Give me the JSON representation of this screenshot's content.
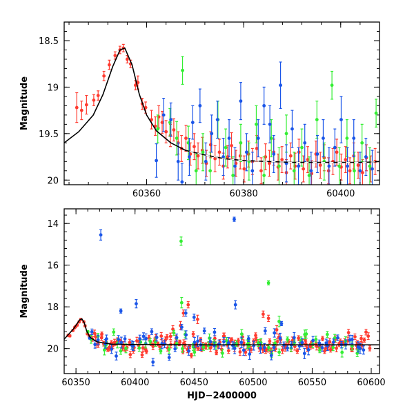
{
  "chart_data": [
    {
      "type": "scatter",
      "panel": "top",
      "xlabel": "",
      "ylabel": "Magnitude",
      "xlim": [
        60343,
        60408
      ],
      "ylim": [
        20.05,
        18.3
      ],
      "y_inverted": true,
      "x_ticks": [
        60360,
        60380,
        60400
      ],
      "x_tick_labels": [
        "60360",
        "60380",
        "60400"
      ],
      "y_ticks": [
        18.5,
        19,
        19.5,
        20
      ],
      "y_tick_labels": [
        "18.5",
        "19",
        "19.5",
        "20"
      ],
      "grid": false,
      "legend": "none",
      "colors": {
        "red": "#ff3b30",
        "green": "#33ee33",
        "blue": "#1a55e8",
        "model": "#000000"
      },
      "model_curve": {
        "label": "",
        "color": "#000000",
        "dashed_beyond_x": 60368,
        "points": [
          [
            60343,
            19.6
          ],
          [
            60346,
            19.48
          ],
          [
            60349,
            19.3
          ],
          [
            60351,
            19.08
          ],
          [
            60353,
            18.78
          ],
          [
            60354.5,
            18.6
          ],
          [
            60355.5,
            18.58
          ],
          [
            60357,
            18.76
          ],
          [
            60358.5,
            19.08
          ],
          [
            60360,
            19.3
          ],
          [
            60362,
            19.47
          ],
          [
            60365,
            19.6
          ],
          [
            60368,
            19.68
          ],
          [
            60372,
            19.73
          ],
          [
            60376,
            19.77
          ],
          [
            60380,
            19.79
          ],
          [
            60385,
            19.8
          ],
          [
            60390,
            19.81
          ],
          [
            60395,
            19.81
          ],
          [
            60400,
            19.81
          ],
          [
            60405,
            19.81
          ],
          [
            60408,
            19.8
          ]
        ]
      },
      "series": [
        {
          "name": "",
          "color": "#ff3b30",
          "points": [
            [
              60345.6,
              19.22,
              0.16
            ],
            [
              60346.6,
              19.25,
              0.1
            ],
            [
              60347.6,
              19.19,
              0.1
            ],
            [
              60349.1,
              19.14,
              0.06
            ],
            [
              60350,
              19.09,
              0.05
            ],
            [
              60351.2,
              18.88,
              0.05
            ],
            [
              60352.3,
              18.76,
              0.05
            ],
            [
              60353.5,
              18.66,
              0.04
            ],
            [
              60354.5,
              18.6,
              0.04
            ],
            [
              60355.2,
              18.58,
              0.04
            ],
            [
              60356,
              18.7,
              0.04
            ],
            [
              60356.7,
              18.75,
              0.04
            ],
            [
              60357.7,
              18.98,
              0.05
            ],
            [
              60358.2,
              18.95,
              0.07
            ],
            [
              60359.1,
              19.18,
              0.06
            ],
            [
              60359.8,
              19.22,
              0.06
            ],
            [
              60361,
              19.35,
              0.1
            ],
            [
              60361.8,
              19.42,
              0.1
            ],
            [
              60362.5,
              19.32,
              0.12
            ],
            [
              60363.2,
              19.38,
              0.12
            ],
            [
              60364,
              19.48,
              0.12
            ],
            [
              60364.9,
              19.52,
              0.12
            ],
            [
              60365.6,
              19.46,
              0.12
            ],
            [
              60366.5,
              19.6,
              0.12
            ],
            [
              60367.2,
              19.66,
              0.14
            ],
            [
              60368.1,
              19.55,
              0.14
            ],
            [
              60369,
              19.72,
              0.12
            ],
            [
              60369.8,
              19.64,
              0.14
            ],
            [
              60370.6,
              19.74,
              0.14
            ],
            [
              60371.5,
              19.68,
              0.14
            ],
            [
              60372.3,
              19.82,
              0.14
            ],
            [
              60373.2,
              19.62,
              0.14
            ],
            [
              60374.1,
              19.77,
              0.14
            ],
            [
              60375,
              19.7,
              0.14
            ],
            [
              60375.8,
              19.85,
              0.14
            ],
            [
              60376.7,
              19.75,
              0.12
            ],
            [
              60377.5,
              19.63,
              0.14
            ],
            [
              60378.4,
              19.82,
              0.14
            ],
            [
              60379.3,
              19.74,
              0.14
            ],
            [
              60380.1,
              19.88,
              0.14
            ],
            [
              60381,
              19.72,
              0.14
            ],
            [
              60381.8,
              19.8,
              0.14
            ],
            [
              60382.7,
              19.66,
              0.14
            ],
            [
              60383.6,
              19.9,
              0.14
            ],
            [
              60384.5,
              19.75,
              0.14
            ],
            [
              60385.3,
              19.82,
              0.14
            ],
            [
              60386.2,
              19.7,
              0.14
            ],
            [
              60387.1,
              19.86,
              0.14
            ],
            [
              60387.9,
              19.78,
              0.14
            ],
            [
              60388.8,
              19.92,
              0.14
            ],
            [
              60389.7,
              19.74,
              0.14
            ],
            [
              60390.6,
              19.85,
              0.14
            ],
            [
              60391.4,
              19.7,
              0.14
            ],
            [
              60392.3,
              19.88,
              0.14
            ],
            [
              60393.2,
              19.78,
              0.14
            ],
            [
              60394,
              19.93,
              0.14
            ],
            [
              60394.9,
              19.72,
              0.14
            ],
            [
              60395.8,
              19.84,
              0.14
            ],
            [
              60396.6,
              19.76,
              0.14
            ],
            [
              60397.5,
              19.9,
              0.14
            ],
            [
              60398.4,
              19.8,
              0.14
            ],
            [
              60399.2,
              19.7,
              0.14
            ],
            [
              60400.1,
              19.86,
              0.14
            ],
            [
              60401,
              19.78,
              0.14
            ],
            [
              60401.9,
              19.9,
              0.14
            ],
            [
              60402.7,
              19.74,
              0.14
            ],
            [
              60403.6,
              19.84,
              0.14
            ],
            [
              60404.5,
              19.92,
              0.14
            ],
            [
              60405.3,
              19.76,
              0.14
            ],
            [
              60406.2,
              19.88,
              0.14
            ],
            [
              60407.1,
              19.8,
              0.14
            ]
          ]
        },
        {
          "name": "",
          "color": "#33ee33",
          "points": [
            [
              60362.3,
              19.45,
              0.15
            ],
            [
              60364.8,
              19.38,
              0.15
            ],
            [
              60366.2,
              19.55,
              0.18
            ],
            [
              60367.4,
              18.82,
              0.15
            ],
            [
              60368.6,
              19.6,
              0.18
            ],
            [
              60370.2,
              19.9,
              0.18
            ],
            [
              60371.6,
              19.7,
              0.2
            ],
            [
              60373.1,
              19.9,
              0.2
            ],
            [
              60374.7,
              19.35,
              0.2
            ],
            [
              60376.3,
              19.65,
              0.2
            ],
            [
              60377.8,
              19.95,
              0.2
            ],
            [
              60379.4,
              19.6,
              0.2
            ],
            [
              60381.1,
              19.8,
              0.2
            ],
            [
              60382.6,
              19.4,
              0.2
            ],
            [
              60384.2,
              19.95,
              0.2
            ],
            [
              60385.7,
              19.55,
              0.2
            ],
            [
              60387.3,
              19.85,
              0.2
            ],
            [
              60388.8,
              19.5,
              0.2
            ],
            [
              60390.4,
              19.9,
              0.2
            ],
            [
              60392,
              19.65,
              0.2
            ],
            [
              60393.5,
              19.95,
              0.2
            ],
            [
              60395.1,
              19.35,
              0.2
            ],
            [
              60396.6,
              19.8,
              0.2
            ],
            [
              60398.2,
              18.98,
              0.15
            ],
            [
              60399.7,
              19.85,
              0.2
            ],
            [
              60401.3,
              19.55,
              0.2
            ],
            [
              60402.8,
              19.9,
              0.2
            ],
            [
              60404.4,
              19.6,
              0.2
            ],
            [
              60406,
              19.85,
              0.2
            ],
            [
              60407.3,
              19.28,
              0.15
            ]
          ]
        },
        {
          "name": "",
          "color": "#1a55e8",
          "points": [
            [
              60362,
              19.79,
              0.18
            ],
            [
              60363.5,
              19.3,
              0.18
            ],
            [
              60365,
              19.35,
              0.18
            ],
            [
              60366.5,
              19.8,
              0.2
            ],
            [
              60367.3,
              20.02,
              0.2
            ],
            [
              60368.8,
              19.75,
              0.2
            ],
            [
              60369.5,
              19.38,
              0.18
            ],
            [
              60371,
              19.2,
              0.18
            ],
            [
              60372.2,
              19.8,
              0.2
            ],
            [
              60373.4,
              19.5,
              0.2
            ],
            [
              60374.6,
              19.35,
              0.2
            ],
            [
              60375.8,
              19.75,
              0.2
            ],
            [
              60377,
              19.55,
              0.2
            ],
            [
              60378.2,
              19.85,
              0.2
            ],
            [
              60379.4,
              19.15,
              0.2
            ],
            [
              60380.6,
              19.7,
              0.2
            ],
            [
              60381.8,
              19.9,
              0.2
            ],
            [
              60383,
              19.55,
              0.2
            ],
            [
              60384.2,
              19.2,
              0.2
            ],
            [
              60385.4,
              19.4,
              0.2
            ],
            [
              60386.2,
              19.72,
              0.2
            ],
            [
              60387.6,
              18.98,
              0.25
            ],
            [
              60388.8,
              19.82,
              0.2
            ],
            [
              60390,
              19.45,
              0.2
            ],
            [
              60391.3,
              19.85,
              0.2
            ],
            [
              60392.6,
              19.6,
              0.2
            ],
            [
              60393.9,
              19.9,
              0.2
            ],
            [
              60395.2,
              19.72,
              0.2
            ],
            [
              60396.4,
              19.55,
              0.2
            ],
            [
              60397.6,
              19.85,
              0.2
            ],
            [
              60398.8,
              19.65,
              0.2
            ],
            [
              60400.1,
              19.35,
              0.25
            ],
            [
              60401.4,
              19.85,
              0.2
            ],
            [
              60402.7,
              19.55,
              0.2
            ],
            [
              60404,
              19.9,
              0.2
            ],
            [
              60405.2,
              19.75,
              0.2
            ],
            [
              60406.5,
              19.88,
              0.2
            ]
          ]
        }
      ]
    },
    {
      "type": "scatter",
      "panel": "bottom",
      "xlabel": "HJD−2400000",
      "ylabel": "Magnitude",
      "xlim": [
        60340,
        60607
      ],
      "ylim": [
        21.2,
        13.3
      ],
      "y_inverted": true,
      "x_ticks": [
        60350,
        60400,
        60450,
        60500,
        60550,
        60600
      ],
      "x_tick_labels": [
        "60350",
        "60400",
        "60450",
        "60500",
        "60550",
        "60600"
      ],
      "y_ticks": [
        14,
        16,
        18,
        20
      ],
      "y_tick_labels": [
        "14",
        "16",
        "18",
        "20"
      ],
      "grid": false,
      "legend": "none",
      "model_curve": {
        "label": "",
        "color": "#000000",
        "points": [
          [
            60340,
            19.55
          ],
          [
            60344,
            19.3
          ],
          [
            60348,
            19.05
          ],
          [
            60351,
            18.8
          ],
          [
            60353,
            18.63
          ],
          [
            60355,
            18.58
          ],
          [
            60357,
            18.76
          ],
          [
            60359,
            19.15
          ],
          [
            60362,
            19.47
          ],
          [
            60368,
            19.68
          ],
          [
            60380,
            19.79
          ],
          [
            60400,
            19.81
          ],
          [
            60450,
            19.82
          ],
          [
            60500,
            19.82
          ],
          [
            60550,
            19.82
          ],
          [
            60607,
            19.82
          ]
        ]
      },
      "series": [
        {
          "name": "",
          "color": "#ff3b30",
          "outliers": [
            [
              60438.5,
              18.9,
              0.2
            ],
            [
              60441,
              18.3,
              0.15
            ],
            [
              60445,
              17.9,
              0.15
            ],
            [
              60453,
              18.6,
              0.2
            ],
            [
              60508.5,
              18.35,
              0.15
            ],
            [
              60513,
              18.55,
              0.15
            ],
            [
              60520,
              19.1,
              0.2
            ]
          ],
          "dense_range": [
            60344,
            60600
          ],
          "dense_step": 1.5,
          "baseline": 19.82,
          "scatter": 0.22,
          "err": 0.15
        },
        {
          "name": "",
          "color": "#33ee33",
          "outliers": [
            [
              60439,
              14.85,
              0.2
            ],
            [
              60439.5,
              17.8,
              0.25
            ],
            [
              60463,
              19.5,
              0.2
            ],
            [
              60496,
              19.6,
              0.2
            ],
            [
              60513,
              16.85,
              0.1
            ],
            [
              60522,
              18.7,
              0.25
            ],
            [
              60545,
              19.3,
              0.2
            ]
          ],
          "dense_range": [
            60360,
            60595
          ],
          "dense_step": 4.2,
          "baseline": 19.85,
          "scatter": 0.3,
          "err": 0.2
        },
        {
          "name": "",
          "color": "#1a55e8",
          "outliers": [
            [
              60371,
              14.55,
              0.25
            ],
            [
              60388,
              18.2,
              0.1
            ],
            [
              60401,
              17.85,
              0.2
            ],
            [
              60443,
              18.3,
              0.15
            ],
            [
              60450,
              18.5,
              0.15
            ],
            [
              60484,
              13.8,
              0.1
            ],
            [
              60485,
              17.9,
              0.2
            ],
            [
              60524,
              18.8,
              0.1
            ],
            [
              60518,
              19.25,
              0.2
            ]
          ],
          "dense_range": [
            60360,
            60595
          ],
          "dense_step": 3.3,
          "baseline": 19.85,
          "scatter": 0.35,
          "err": 0.22
        }
      ]
    }
  ]
}
